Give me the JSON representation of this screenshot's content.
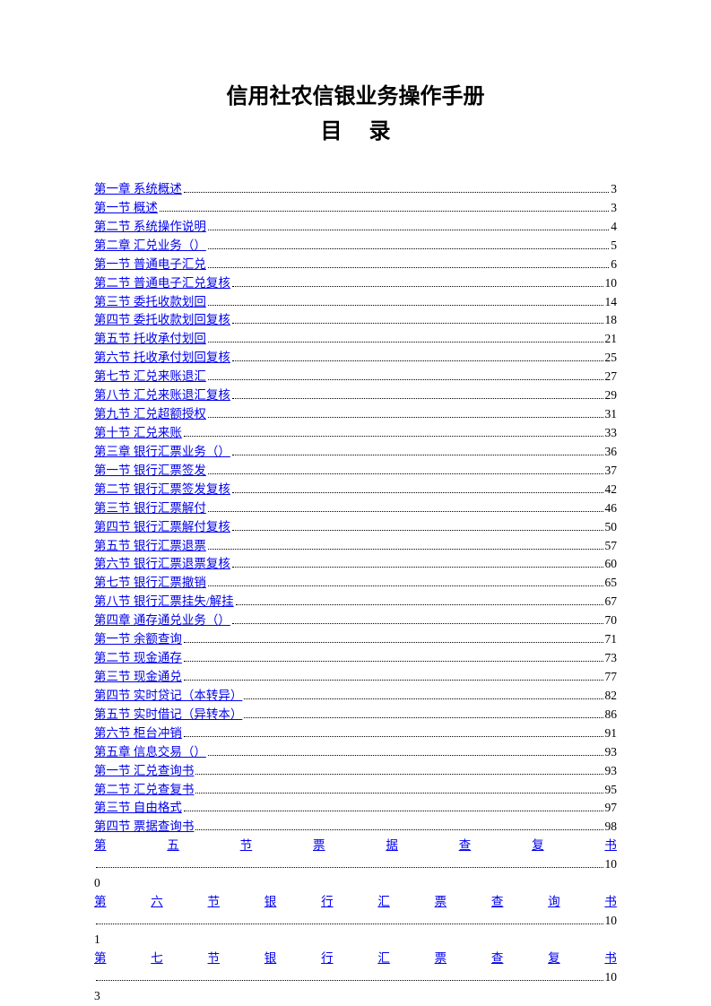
{
  "document": {
    "main_title": "信用社农信银业务操作手册",
    "sub_title": "目录",
    "text_color": "#000000",
    "link_color": "#0000ee",
    "background_color": "#ffffff",
    "title_fontsize": 24,
    "body_fontsize": 13.5
  },
  "toc": [
    {
      "label": "第一章  系统概述",
      "page": "3"
    },
    {
      "label": "第一节  概述",
      "page": "3"
    },
    {
      "label": "第二节  系统操作说明",
      "page": "4"
    },
    {
      "label": "第二章   汇兑业务（）",
      "page": "5"
    },
    {
      "label": "第一节  普通电子汇兑",
      "page": "6"
    },
    {
      "label": "第二节  普通电子汇兑复核",
      "page": "10"
    },
    {
      "label": "第三节  委托收款划回",
      "page": "14"
    },
    {
      "label": "第四节  委托收款划回复核",
      "page": "18"
    },
    {
      "label": "第五节  托收承付划回",
      "page": "21"
    },
    {
      "label": "第六节  托收承付划回复核",
      "page": "25"
    },
    {
      "label": "第七节  汇兑来账退汇",
      "page": "27"
    },
    {
      "label": "第八节  汇兑来账退汇复核",
      "page": "29"
    },
    {
      "label": "第九节  汇兑超额授权",
      "page": "31"
    },
    {
      "label": "第十节  汇兑来账",
      "page": "33"
    },
    {
      "label": "第三章  银行汇票业务（）",
      "page": "36"
    },
    {
      "label": "第一节  银行汇票签发",
      "page": "37"
    },
    {
      "label": "第二节  银行汇票签发复核",
      "page": "42"
    },
    {
      "label": "第三节  银行汇票解付",
      "page": "46"
    },
    {
      "label": "第四节  银行汇票解付复核",
      "page": "50"
    },
    {
      "label": "第五节  银行汇票退票",
      "page": "57"
    },
    {
      "label": "第六节  银行汇票退票复核",
      "page": "60"
    },
    {
      "label": "第七节  银行汇票撤销",
      "page": "65"
    },
    {
      "label": "第八节  银行汇票挂失/解挂",
      "page": "67"
    },
    {
      "label": "第四章   通存通兑业务（）",
      "page": "70"
    },
    {
      "label": "第一节  余额查询",
      "page": "71"
    },
    {
      "label": "第二节  现金通存",
      "page": "73"
    },
    {
      "label": "第三节  现金通兑",
      "page": "77"
    },
    {
      "label": "第四节  实时贷记（本转异）",
      "page": "82"
    },
    {
      "label": "第五节  实时借记（异转本）",
      "page": "86"
    },
    {
      "label": "第六节  柜台冲销",
      "page": "91"
    },
    {
      "label": "第五章   信息交易（）",
      "page": "93"
    },
    {
      "label": "第一节  汇兑查询书",
      "page": "93"
    },
    {
      "label": "第二节  汇兑查复书",
      "page": "95"
    },
    {
      "label": "第三节  自由格式",
      "page": "97"
    },
    {
      "label": "第四节  票据查询书",
      "page": "98"
    }
  ],
  "toc_wide": [
    {
      "chars": [
        "第",
        "五",
        "节",
        "票",
        "据",
        "查",
        "复",
        "书"
      ],
      "page_high": "10",
      "page_low": "0"
    },
    {
      "chars": [
        "第",
        "六",
        "节",
        "银",
        "行",
        "汇",
        "票",
        "查",
        "询",
        "书"
      ],
      "page_high": "10",
      "page_low": "1"
    },
    {
      "chars": [
        "第",
        "七",
        "节",
        "银",
        "行",
        "汇",
        "票",
        "查",
        "复",
        "书"
      ],
      "page_high": "10",
      "page_low": "3"
    }
  ]
}
